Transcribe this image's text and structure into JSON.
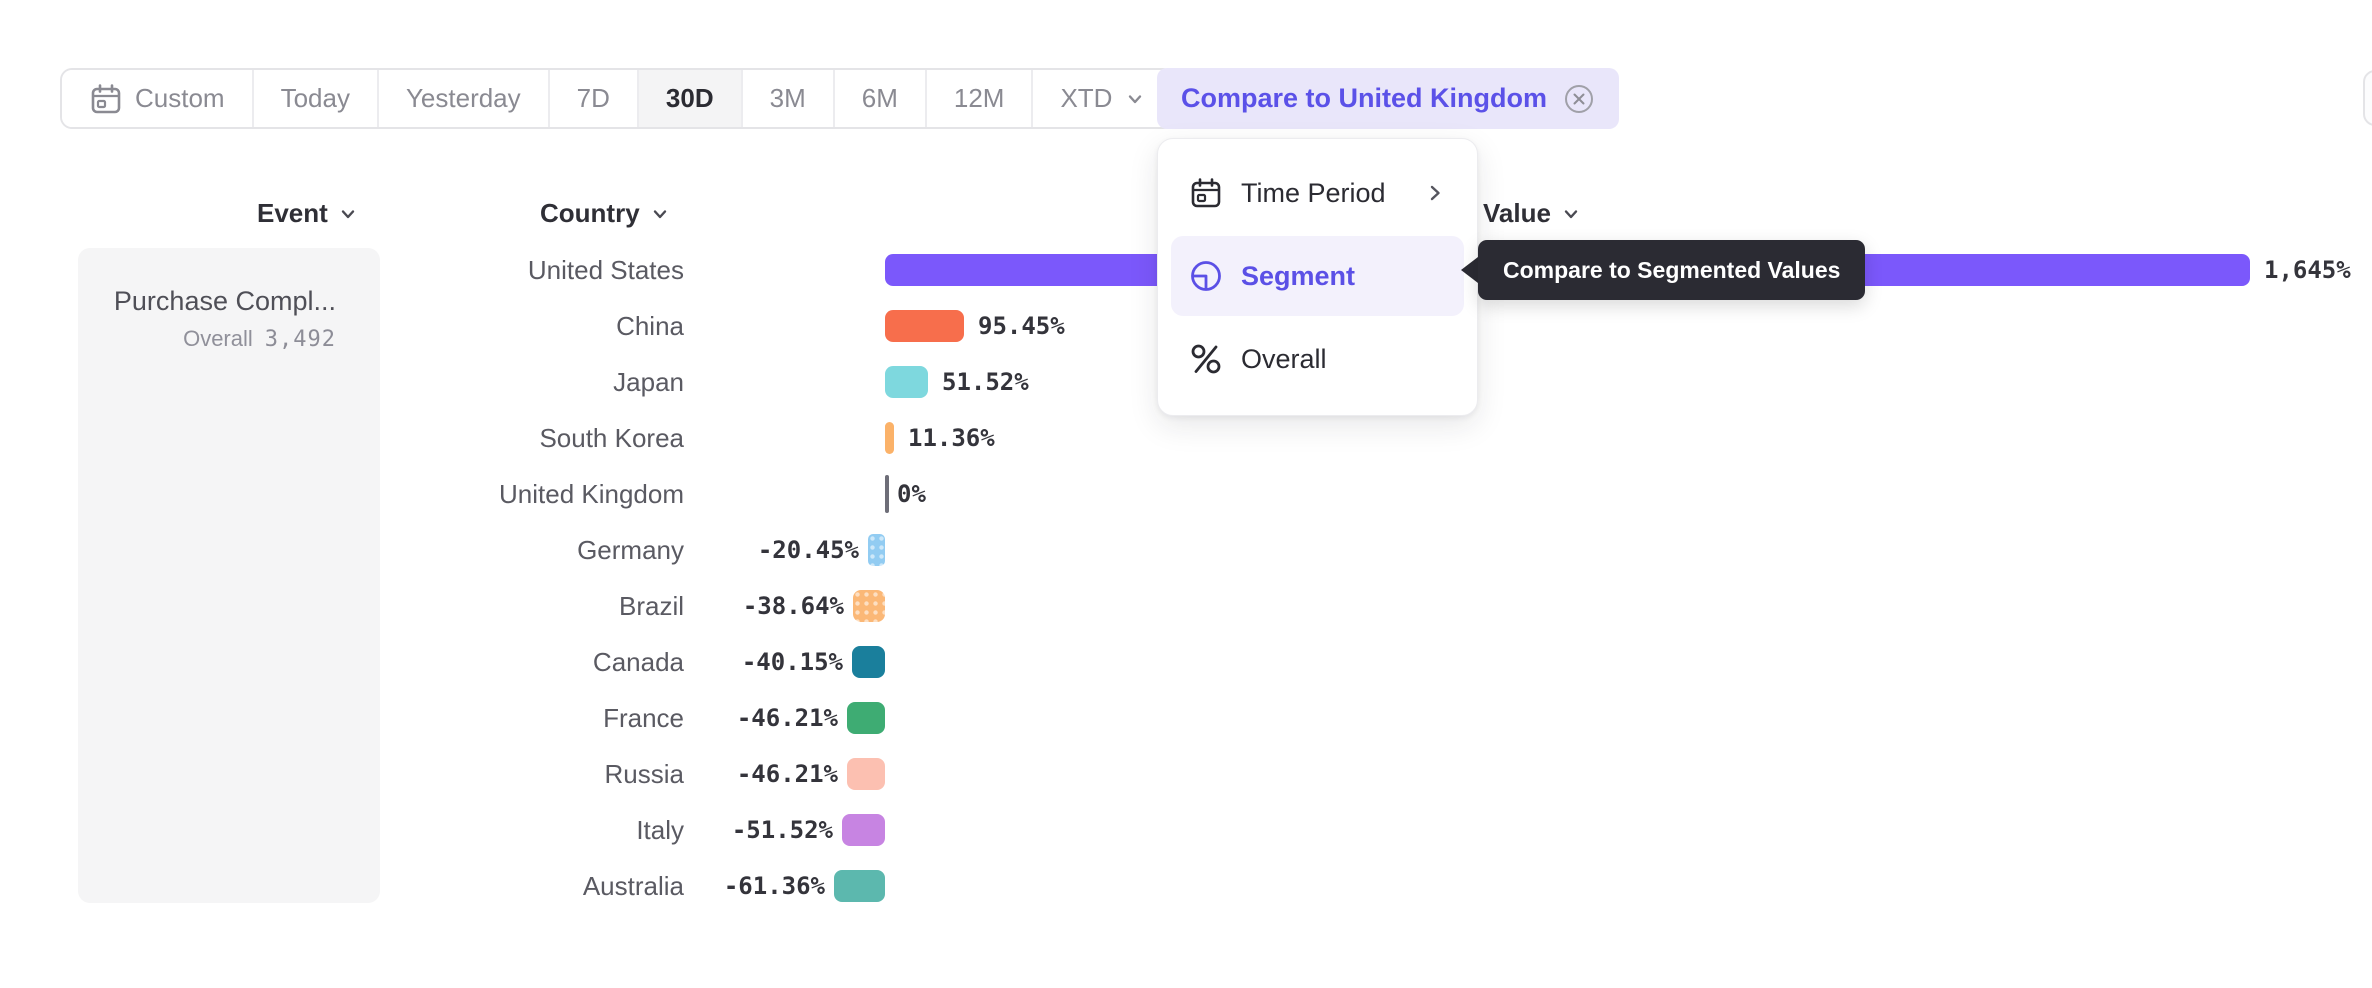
{
  "toolbar": {
    "range_buttons": [
      {
        "label": "Custom",
        "icon": "calendar",
        "selected": false
      },
      {
        "label": "Today",
        "selected": false
      },
      {
        "label": "Yesterday",
        "selected": false
      },
      {
        "label": "7D",
        "selected": false
      },
      {
        "label": "30D",
        "selected": true
      },
      {
        "label": "3M",
        "selected": false
      },
      {
        "label": "6M",
        "selected": false
      },
      {
        "label": "12M",
        "selected": false
      },
      {
        "label": "XTD",
        "has_dropdown": true,
        "selected": false
      }
    ],
    "compare_chip": {
      "label": "Compare to United Kingdom",
      "close_icon": "circle-x-icon"
    }
  },
  "columns": [
    {
      "label": "Event"
    },
    {
      "label": "Country"
    },
    {
      "label": "Value"
    }
  ],
  "event_panel": {
    "event_name": "Purchase Compl...",
    "overall_label": "Overall",
    "overall_value": "3,492"
  },
  "menu": {
    "items": [
      {
        "label": "Time Period",
        "icon": "calendar-icon",
        "has_submenu": true,
        "selected": false
      },
      {
        "label": "Segment",
        "icon": "segment-icon",
        "selected": true
      },
      {
        "label": "Overall",
        "icon": "percent-icon",
        "selected": false
      }
    ]
  },
  "tooltip": {
    "text": "Compare to Segmented Values"
  },
  "chart_data": {
    "type": "bar",
    "orientation": "horizontal",
    "title": "",
    "xlabel": "Value (% vs United Kingdom)",
    "ylabel": "Country",
    "unit": "%",
    "baseline_value": 0,
    "categories": [
      "United States",
      "China",
      "Japan",
      "South Korea",
      "United Kingdom",
      "Germany",
      "Brazil",
      "Canada",
      "France",
      "Russia",
      "Italy",
      "Australia"
    ],
    "values": [
      1645,
      95.45,
      51.52,
      11.36,
      0,
      -20.45,
      -38.64,
      -40.15,
      -46.21,
      -46.21,
      -51.52,
      -61.36
    ],
    "value_labels": [
      "1,645%",
      "95.45%",
      "51.52%",
      "11.36%",
      "0%",
      "-20.45%",
      "-38.64%",
      "-40.15%",
      "-46.21%",
      "-46.21%",
      "-51.52%",
      "-61.36%"
    ],
    "colors": [
      "#7B58FB",
      "#F76E4C",
      "#7ED8DE",
      "#FBB269",
      "#6E6E78",
      "#92CCF2",
      "#FBB877",
      "#1A7F9C",
      "#3EAC73",
      "#FCC0B1",
      "#C784E2",
      "#5CB8AE"
    ],
    "patterns": [
      null,
      null,
      null,
      null,
      null,
      "dots",
      "dots",
      null,
      null,
      null,
      null,
      null
    ],
    "grid": false,
    "legend": false
  },
  "accent_colors": {
    "primary_purple": "#5B51E8",
    "chip_background": "#E9E6FA",
    "menu_highlight": "#F3F1FC",
    "tooltip_background": "#2B2B33"
  }
}
